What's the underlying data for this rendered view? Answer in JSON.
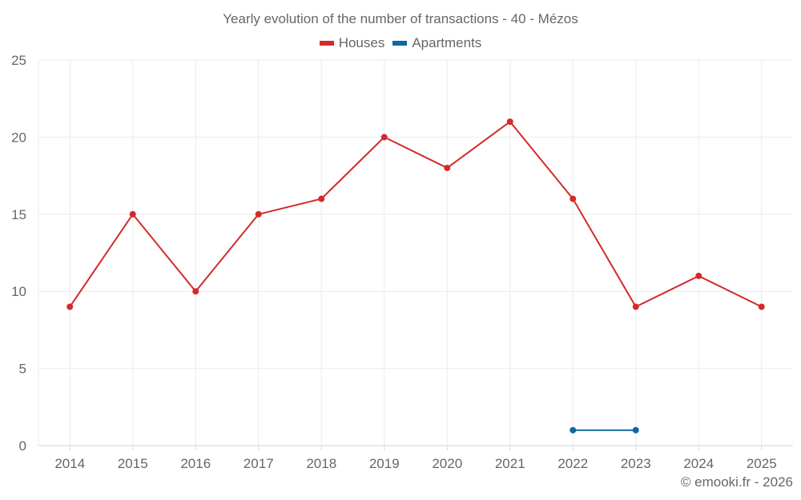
{
  "chart_data": {
    "type": "line",
    "title": "Yearly evolution of the number of transactions - 40 - Mézos",
    "xlabel": "",
    "ylabel": "",
    "categories": [
      "2014",
      "2015",
      "2016",
      "2017",
      "2018",
      "2019",
      "2020",
      "2021",
      "2022",
      "2023",
      "2024",
      "2025"
    ],
    "series": [
      {
        "name": "Houses",
        "color": "#d42a2a",
        "values": [
          9,
          15,
          10,
          15,
          16,
          20,
          18,
          21,
          16,
          9,
          11,
          9
        ]
      },
      {
        "name": "Apartments",
        "color": "#0f67a0",
        "values": [
          null,
          null,
          null,
          null,
          null,
          null,
          null,
          null,
          1,
          1,
          null,
          null
        ]
      }
    ],
    "ylim": [
      0,
      25
    ],
    "yticks": [
      0,
      5,
      10,
      15,
      20,
      25
    ],
    "grid": true,
    "legend_position": "top-center"
  },
  "footer": {
    "credit": "© emooki.fr - 2026"
  }
}
